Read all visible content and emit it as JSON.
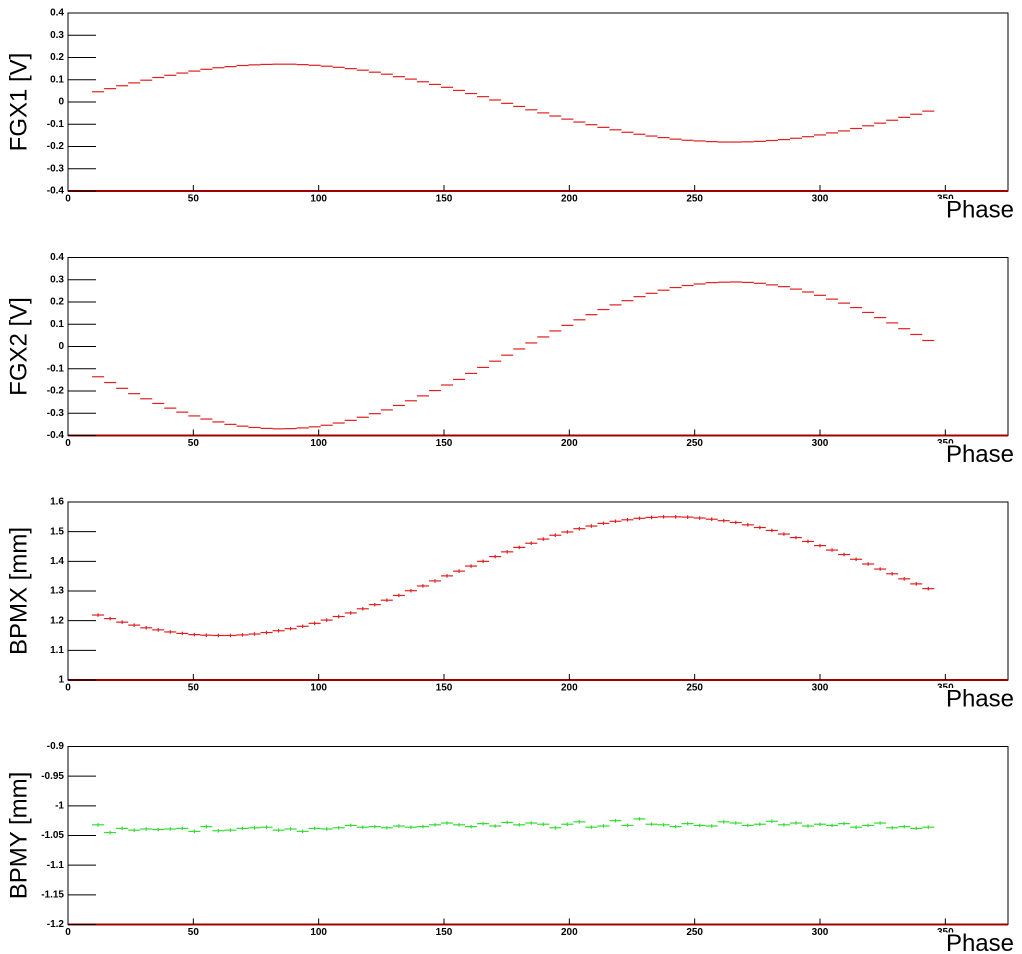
{
  "chart_data": [
    {
      "type": "errorbar",
      "ylabel": "FGX1 [V]",
      "xlabel": "Phase",
      "color": "#e02020",
      "x": [
        12,
        16.8,
        21.6,
        26.4,
        31.2,
        36,
        40.8,
        45.6,
        50.4,
        55.2,
        60,
        64.8,
        69.6,
        74.4,
        79.2,
        84,
        88.8,
        93.6,
        98.4,
        103.2,
        108,
        112.8,
        117.6,
        122.4,
        127.2,
        132,
        136.8,
        141.6,
        146.4,
        151.2,
        156,
        160.8,
        165.6,
        170.4,
        175.2,
        180,
        184.8,
        189.6,
        194.4,
        199.2,
        204,
        208.8,
        213.6,
        218.4,
        223.2,
        228,
        232.8,
        237.6,
        242.4,
        247.2,
        252,
        256.8,
        261.6,
        266.4,
        271.2,
        276,
        280.8,
        285.6,
        290.4,
        295.2,
        300,
        304.8,
        309.6,
        314.4,
        319.2,
        324,
        328.8,
        333.6,
        338.4,
        343.2
      ],
      "values": [
        0.046,
        0.06,
        0.073,
        0.086,
        0.098,
        0.11,
        0.12,
        0.13,
        0.139,
        0.147,
        0.154,
        0.159,
        0.164,
        0.167,
        0.169,
        0.17,
        0.17,
        0.168,
        0.165,
        0.161,
        0.156,
        0.15,
        0.143,
        0.134,
        0.125,
        0.114,
        0.103,
        0.091,
        0.079,
        0.066,
        0.052,
        0.038,
        0.024,
        0.009,
        -0.006,
        -0.02,
        -0.035,
        -0.049,
        -0.063,
        -0.077,
        -0.09,
        -0.102,
        -0.114,
        -0.125,
        -0.136,
        -0.145,
        -0.153,
        -0.16,
        -0.167,
        -0.172,
        -0.175,
        -0.178,
        -0.18,
        -0.18,
        -0.179,
        -0.177,
        -0.173,
        -0.169,
        -0.163,
        -0.156,
        -0.148,
        -0.139,
        -0.13,
        -0.119,
        -0.107,
        -0.095,
        -0.082,
        -0.069,
        -0.055,
        -0.041
      ],
      "xerr": 2.4,
      "xlim": [
        0,
        375
      ],
      "xticks": [
        0,
        50,
        100,
        150,
        200,
        250,
        300,
        350
      ],
      "ylim": [
        -0.4,
        0.4
      ],
      "yticks": [
        -0.4,
        -0.3,
        -0.2,
        -0.1,
        0,
        0.1,
        0.2,
        0.3,
        0.4
      ]
    },
    {
      "type": "errorbar",
      "ylabel": "FGX2 [V]",
      "xlabel": "Phase",
      "color": "#e02020",
      "x": [
        12,
        16.8,
        21.6,
        26.4,
        31.2,
        36,
        40.8,
        45.6,
        50.4,
        55.2,
        60,
        64.8,
        69.6,
        74.4,
        79.2,
        84,
        88.8,
        93.6,
        98.4,
        103.2,
        108,
        112.8,
        117.6,
        122.4,
        127.2,
        132,
        136.8,
        141.6,
        146.4,
        151.2,
        156,
        160.8,
        165.6,
        170.4,
        175.2,
        180,
        184.8,
        189.6,
        194.4,
        199.2,
        204,
        208.8,
        213.6,
        218.4,
        223.2,
        228,
        232.8,
        237.6,
        242.4,
        247.2,
        252,
        256.8,
        261.6,
        266.4,
        271.2,
        276,
        280.8,
        285.6,
        290.4,
        295.2,
        300,
        304.8,
        309.6,
        314.4,
        319.2,
        324,
        328.8,
        333.6,
        338.4,
        343.2
      ],
      "values": [
        -0.136,
        -0.162,
        -0.188,
        -0.212,
        -0.235,
        -0.256,
        -0.277,
        -0.295,
        -0.312,
        -0.326,
        -0.339,
        -0.35,
        -0.358,
        -0.364,
        -0.368,
        -0.37,
        -0.369,
        -0.366,
        -0.361,
        -0.354,
        -0.344,
        -0.332,
        -0.318,
        -0.302,
        -0.285,
        -0.265,
        -0.244,
        -0.222,
        -0.198,
        -0.173,
        -0.148,
        -0.121,
        -0.094,
        -0.066,
        -0.039,
        -0.011,
        0.016,
        0.043,
        0.07,
        0.095,
        0.12,
        0.143,
        0.166,
        0.187,
        0.206,
        0.224,
        0.239,
        0.253,
        0.265,
        0.274,
        0.281,
        0.287,
        0.289,
        0.29,
        0.288,
        0.284,
        0.277,
        0.269,
        0.258,
        0.245,
        0.23,
        0.213,
        0.195,
        0.175,
        0.153,
        0.13,
        0.106,
        0.08,
        0.054,
        0.027
      ],
      "xerr": 2.4,
      "xlim": [
        0,
        375
      ],
      "xticks": [
        0,
        50,
        100,
        150,
        200,
        250,
        300,
        350
      ],
      "ylim": [
        -0.4,
        0.4
      ],
      "yticks": [
        -0.4,
        -0.3,
        -0.2,
        -0.1,
        0,
        0.1,
        0.2,
        0.3,
        0.4
      ]
    },
    {
      "type": "errorbar",
      "ylabel": "BPMX [mm]",
      "xlabel": "Phase",
      "color": "#e02020",
      "x": [
        12,
        16.8,
        21.6,
        26.4,
        31.2,
        36,
        40.8,
        45.6,
        50.4,
        55.2,
        60,
        64.8,
        69.6,
        74.4,
        79.2,
        84,
        88.8,
        93.6,
        98.4,
        103.2,
        108,
        112.8,
        117.6,
        122.4,
        127.2,
        132,
        136.8,
        141.6,
        146.4,
        151.2,
        156,
        160.8,
        165.6,
        170.4,
        175.2,
        180,
        184.8,
        189.6,
        194.4,
        199.2,
        204,
        208.8,
        213.6,
        218.4,
        223.2,
        228,
        232.8,
        237.6,
        242.4,
        247.2,
        252,
        256.8,
        261.6,
        266.4,
        271.2,
        276,
        280.8,
        285.6,
        290.4,
        295.2,
        300,
        304.8,
        309.6,
        314.4,
        319.2,
        324,
        328.8,
        333.6,
        338.4,
        343.2
      ],
      "values": [
        1.219,
        1.207,
        1.195,
        1.185,
        1.176,
        1.169,
        1.162,
        1.157,
        1.153,
        1.151,
        1.15,
        1.15,
        1.152,
        1.155,
        1.16,
        1.166,
        1.173,
        1.181,
        1.191,
        1.202,
        1.214,
        1.226,
        1.24,
        1.254,
        1.269,
        1.285,
        1.301,
        1.317,
        1.334,
        1.351,
        1.367,
        1.384,
        1.4,
        1.416,
        1.432,
        1.447,
        1.461,
        1.475,
        1.488,
        1.499,
        1.51,
        1.519,
        1.528,
        1.535,
        1.54,
        1.545,
        1.548,
        1.55,
        1.55,
        1.549,
        1.546,
        1.542,
        1.537,
        1.531,
        1.523,
        1.514,
        1.504,
        1.492,
        1.48,
        1.467,
        1.453,
        1.438,
        1.423,
        1.407,
        1.391,
        1.374,
        1.358,
        1.341,
        1.324,
        1.308
      ],
      "xerr": 2.4,
      "yerr": 0.006,
      "xlim": [
        0,
        375
      ],
      "xticks": [
        0,
        50,
        100,
        150,
        200,
        250,
        300,
        350
      ],
      "ylim": [
        1,
        1.6
      ],
      "yticks": [
        1,
        1.1,
        1.2,
        1.3,
        1.4,
        1.5,
        1.6
      ]
    },
    {
      "type": "errorbar",
      "ylabel": "BPMY [mm]",
      "xlabel": "Phase",
      "color": "#33dd33",
      "x": [
        12,
        16.8,
        21.6,
        26.4,
        31.2,
        36,
        40.8,
        45.6,
        50.4,
        55.2,
        60,
        64.8,
        69.6,
        74.4,
        79.2,
        84,
        88.8,
        93.6,
        98.4,
        103.2,
        108,
        112.8,
        117.6,
        122.4,
        127.2,
        132,
        136.8,
        141.6,
        146.4,
        151.2,
        156,
        160.8,
        165.6,
        170.4,
        175.2,
        180,
        184.8,
        189.6,
        194.4,
        199.2,
        204,
        208.8,
        213.6,
        218.4,
        223.2,
        228,
        232.8,
        237.6,
        242.4,
        247.2,
        252,
        256.8,
        261.6,
        266.4,
        271.2,
        276,
        280.8,
        285.6,
        290.4,
        295.2,
        300,
        304.8,
        309.6,
        314.4,
        319.2,
        324,
        328.8,
        333.6,
        338.4,
        343.2
      ],
      "values": [
        -1.032,
        -1.045,
        -1.038,
        -1.041,
        -1.039,
        -1.04,
        -1.039,
        -1.038,
        -1.043,
        -1.035,
        -1.042,
        -1.041,
        -1.038,
        -1.037,
        -1.036,
        -1.041,
        -1.039,
        -1.043,
        -1.038,
        -1.039,
        -1.037,
        -1.033,
        -1.036,
        -1.035,
        -1.037,
        -1.034,
        -1.036,
        -1.035,
        -1.032,
        -1.029,
        -1.032,
        -1.035,
        -1.03,
        -1.034,
        -1.028,
        -1.032,
        -1.029,
        -1.031,
        -1.037,
        -1.031,
        -1.027,
        -1.036,
        -1.034,
        -1.025,
        -1.033,
        -1.022,
        -1.031,
        -1.032,
        -1.035,
        -1.03,
        -1.033,
        -1.034,
        -1.027,
        -1.029,
        -1.033,
        -1.031,
        -1.026,
        -1.032,
        -1.029,
        -1.034,
        -1.031,
        -1.033,
        -1.03,
        -1.036,
        -1.033,
        -1.029,
        -1.037,
        -1.035,
        -1.038,
        -1.036
      ],
      "xerr": 2.4,
      "yerr": 0.003,
      "xlim": [
        0,
        375
      ],
      "xticks": [
        0,
        50,
        100,
        150,
        200,
        250,
        300,
        350
      ],
      "ylim": [
        -1.2,
        -0.9
      ],
      "yticks": [
        -1.2,
        -1.15,
        -1.1,
        -1.05,
        -1,
        -0.95,
        -0.9
      ]
    }
  ]
}
